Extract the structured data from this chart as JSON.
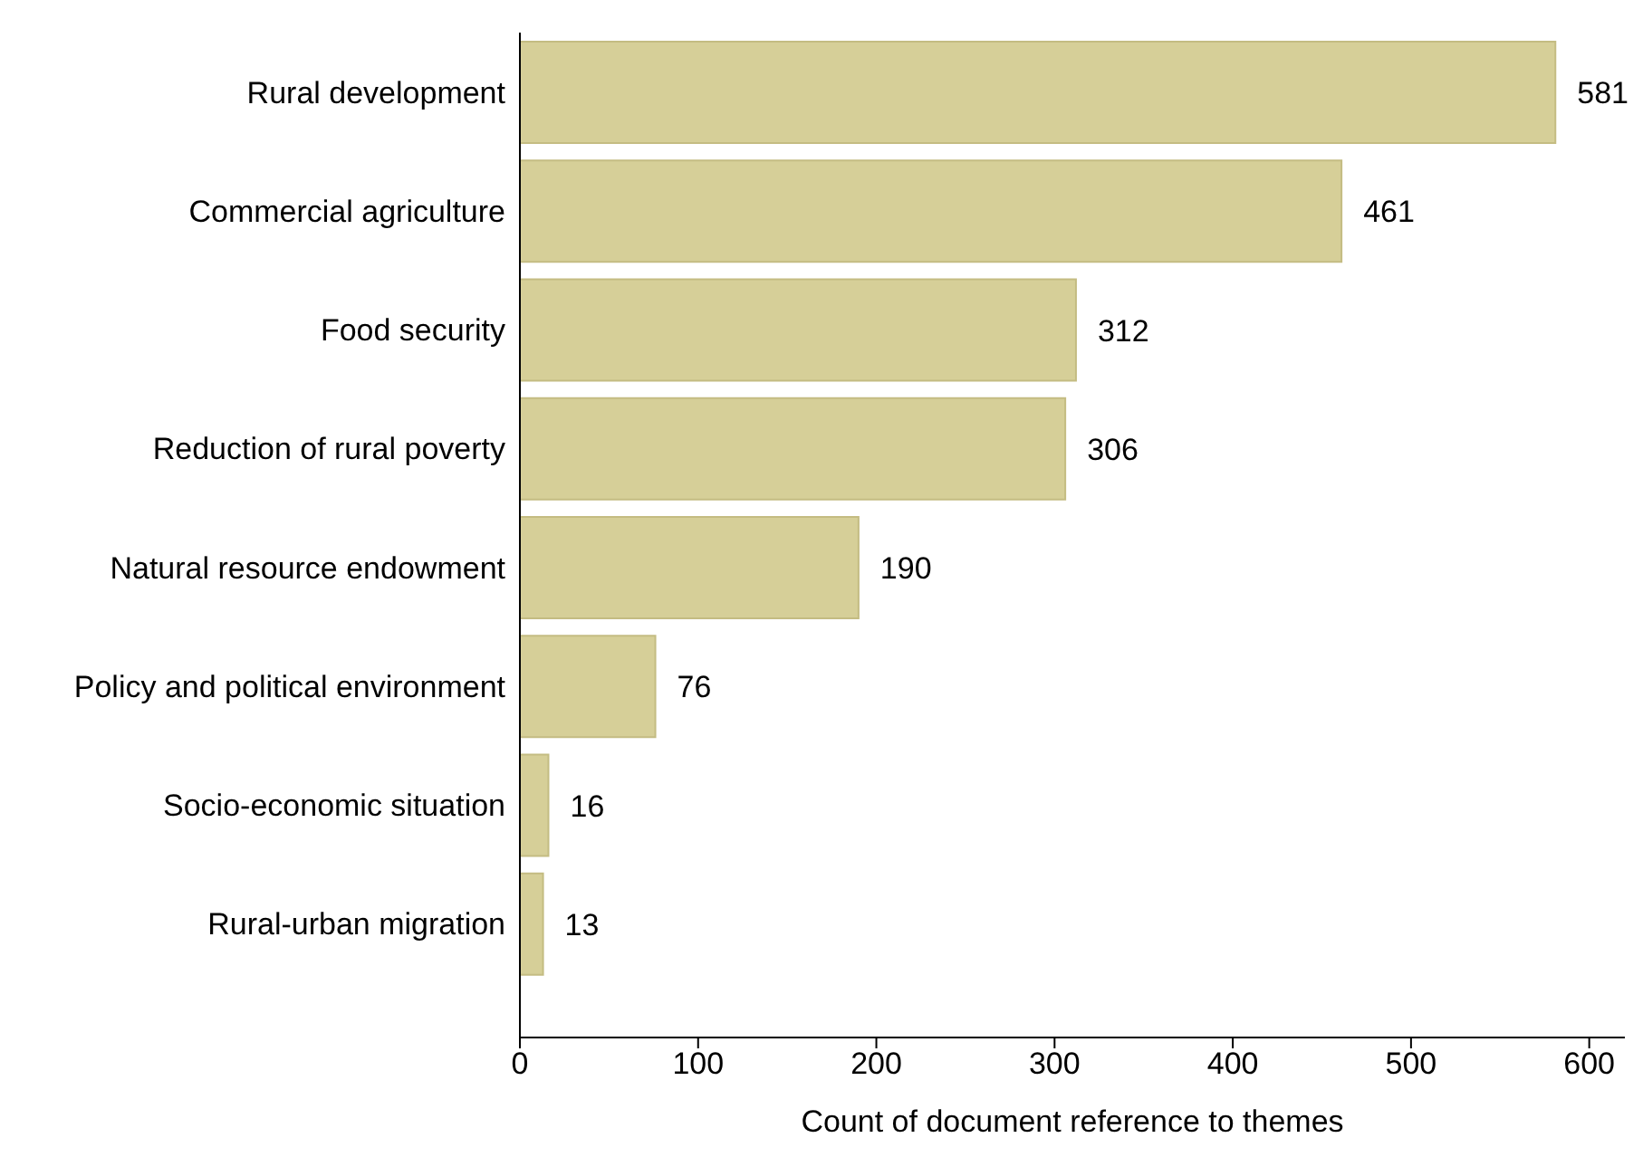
{
  "chart_data": {
    "type": "bar",
    "orientation": "horizontal",
    "xlabel": "Count of document reference to themes",
    "categories": [
      "Rural development",
      "Commercial agriculture",
      "Food security",
      "Reduction of rural poverty",
      "Natural resource endowment",
      "Policy and political environment",
      "Socio-economic situation",
      "Rural-urban migration"
    ],
    "values": [
      581,
      461,
      312,
      306,
      190,
      76,
      16,
      13
    ],
    "color": "#d6cf98",
    "xlim": [
      0,
      620
    ],
    "xticks": [
      0,
      100,
      200,
      300,
      400,
      500,
      600
    ],
    "data_labels": true
  }
}
